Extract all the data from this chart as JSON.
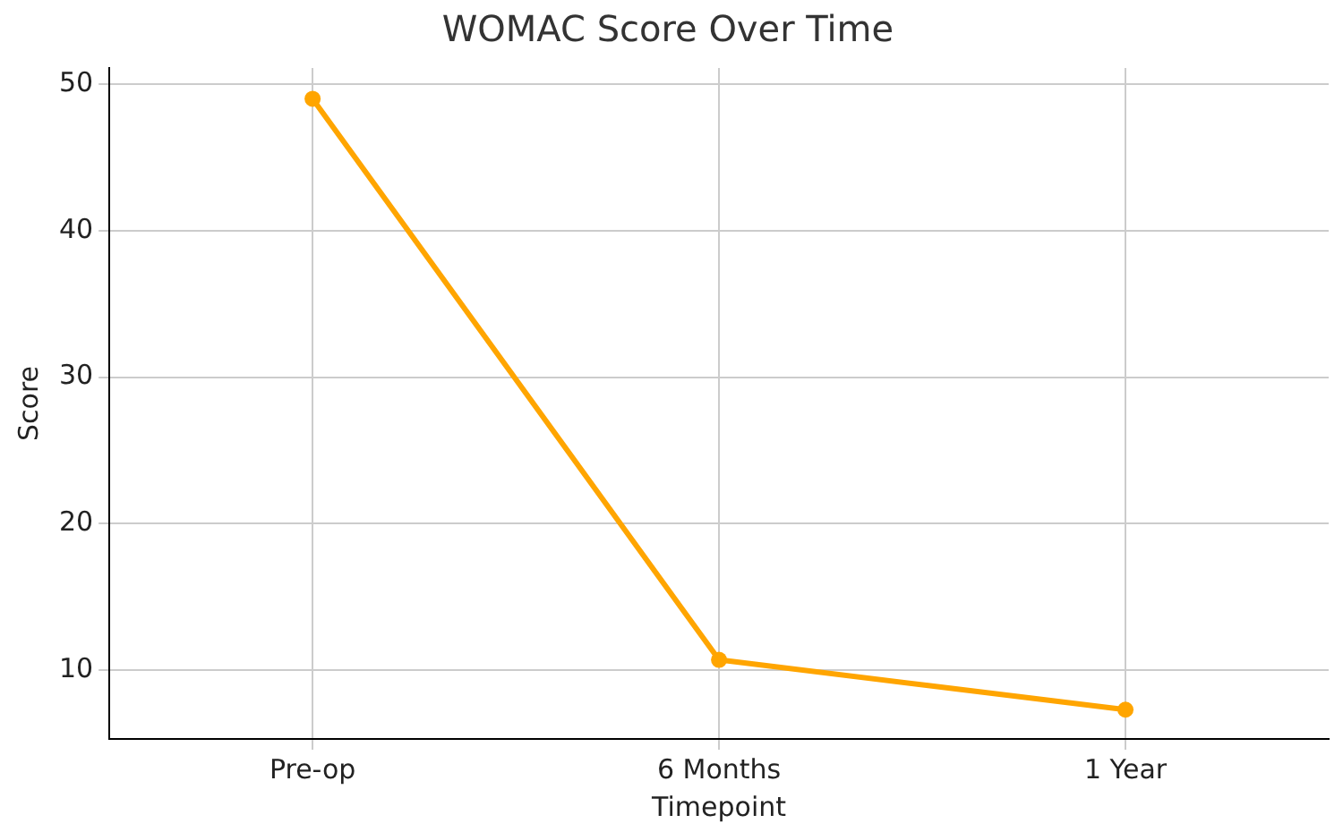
{
  "chart_data": {
    "type": "line",
    "title": "WOMAC Score Over Time",
    "xlabel": "Timepoint",
    "ylabel": "Score",
    "categories": [
      "Pre-op",
      "6 Months",
      "1 Year"
    ],
    "series": [
      {
        "color": "#ffa500",
        "values": [
          49.0,
          10.7,
          7.3
        ]
      }
    ],
    "ylim": [
      5.3,
      51.1
    ],
    "yticks": [
      10,
      20,
      30,
      40,
      50
    ],
    "grid": true,
    "marker": "circle",
    "line_style": "solid"
  }
}
